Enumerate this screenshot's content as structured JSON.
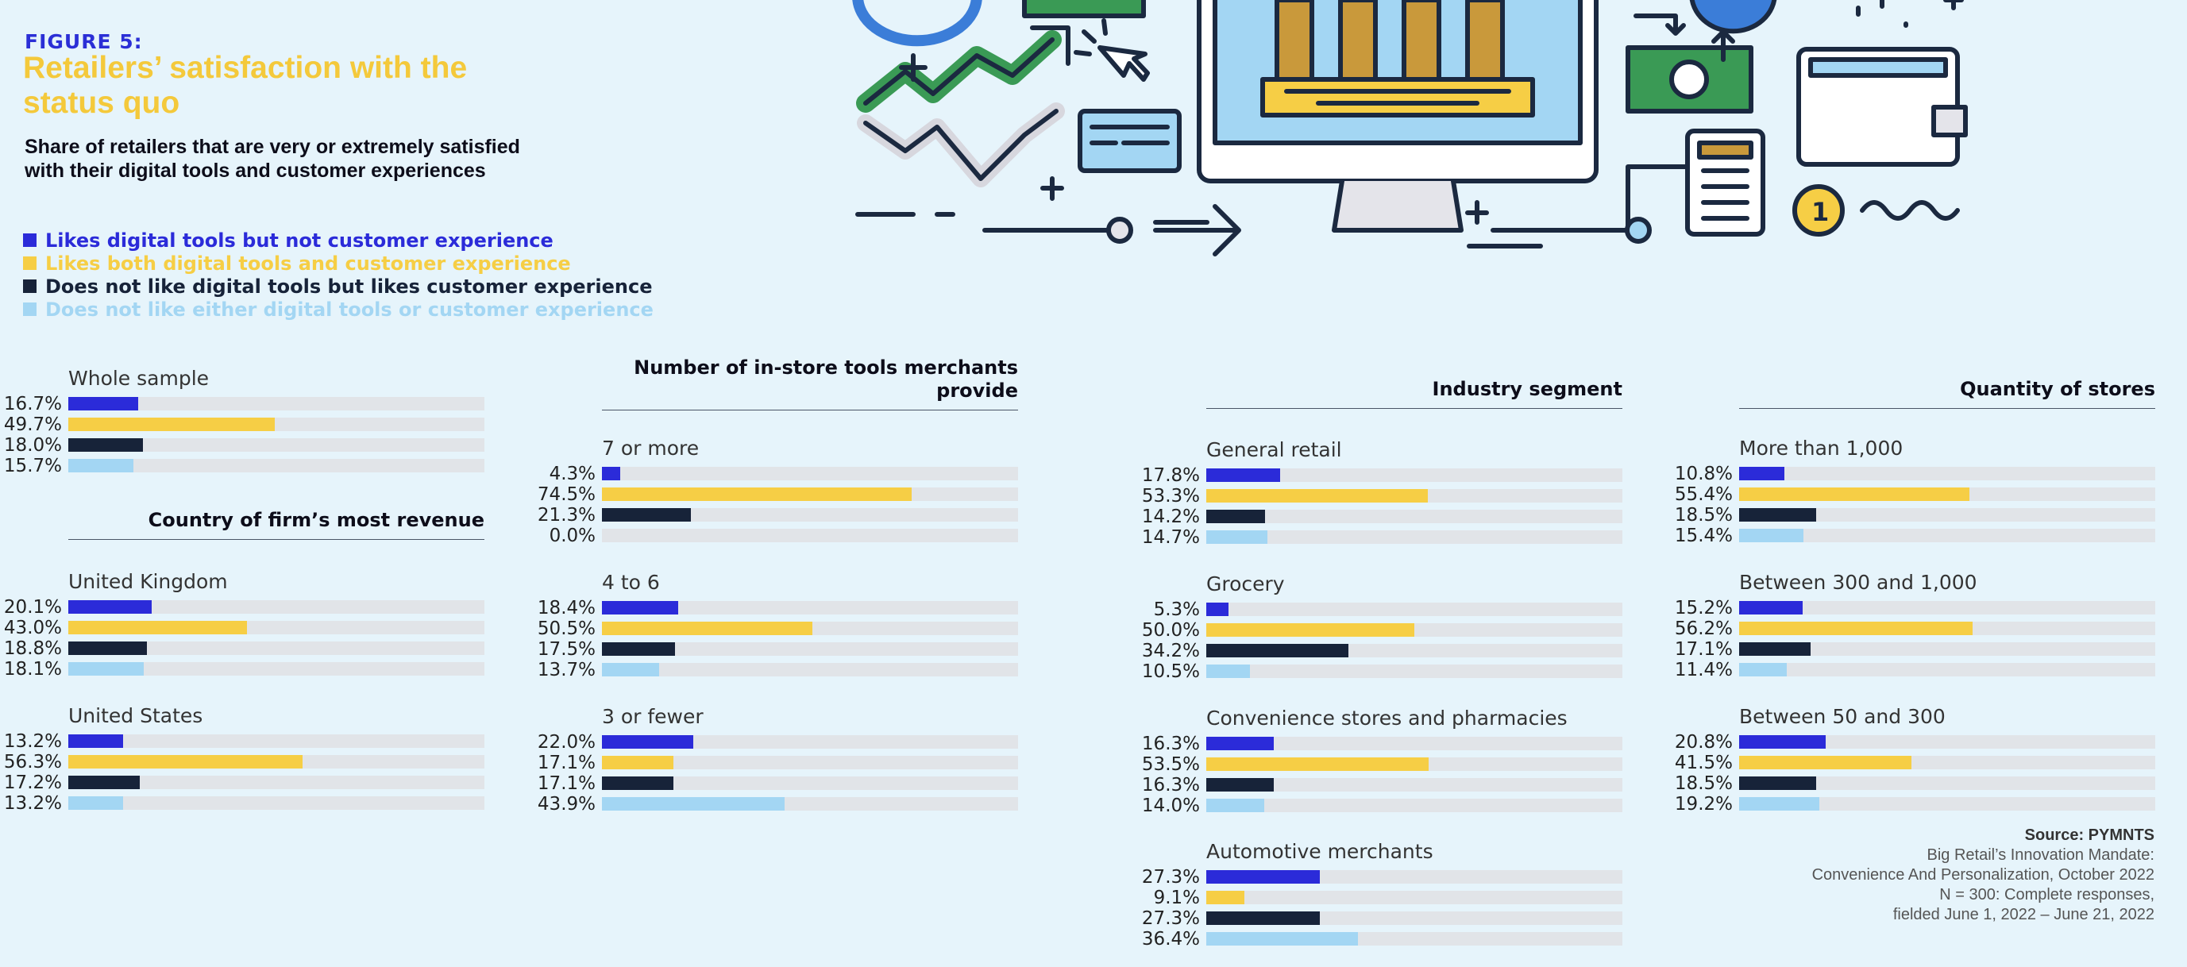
{
  "header": {
    "figure_label": "FIGURE 5:",
    "title": "Retailers’ satisfaction with the status quo",
    "subtitle": "Share of retailers that are very or extremely satisfied with their digital tools and customer experiences"
  },
  "colors": {
    "label": "#2b2fd6",
    "title": "#f4c93b",
    "track": "#e1e4e8",
    "series": [
      "#2b2bd9",
      "#f6ce45",
      "#172339",
      "#a3d6f3"
    ]
  },
  "chart_data": {
    "type": "bar",
    "orientation": "horizontal",
    "unit": "%",
    "xlim": [
      0,
      100
    ],
    "series_names": [
      "Likes digital tools but not customer experience",
      "Likes both digital tools and customer experience",
      "Does not like digital tools but likes customer experience",
      "Does not like either digital tools or customer experience"
    ],
    "sections": [
      {
        "title": "",
        "groups": [
          {
            "label": "Whole sample",
            "values": [
              16.7,
              49.7,
              18.0,
              15.7
            ],
            "display": [
              "16.7%",
              "49.7%",
              "18.0%",
              "15.7%"
            ]
          }
        ]
      },
      {
        "title": "Country of firm’s most revenue",
        "groups": [
          {
            "label": "United Kingdom",
            "values": [
              20.1,
              43.0,
              18.8,
              18.1
            ],
            "display": [
              "20.1%",
              "43.0%",
              "18.8%",
              "18.1%"
            ]
          },
          {
            "label": "United States",
            "values": [
              13.2,
              56.3,
              17.2,
              13.2
            ],
            "display": [
              "13.2%",
              "56.3%",
              "17.2%",
              "13.2%"
            ]
          }
        ]
      },
      {
        "title": "Number of in-store tools merchants provide",
        "groups": [
          {
            "label": "7 or more",
            "values": [
              4.3,
              74.5,
              21.3,
              0.0
            ],
            "display": [
              "4.3%",
              "74.5%",
              "21.3%",
              "0.0%"
            ]
          },
          {
            "label": "4 to 6",
            "values": [
              18.4,
              50.5,
              17.5,
              13.7
            ],
            "display": [
              "18.4%",
              "50.5%",
              "17.5%",
              "13.7%"
            ]
          },
          {
            "label": "3 or fewer",
            "values": [
              22.0,
              17.1,
              17.1,
              43.9
            ],
            "display": [
              "22.0%",
              "17.1%",
              "17.1%",
              "43.9%"
            ]
          }
        ]
      },
      {
        "title": "Industry segment",
        "groups": [
          {
            "label": "General retail",
            "values": [
              17.8,
              53.3,
              14.2,
              14.7
            ],
            "display": [
              "17.8%",
              "53.3%",
              "14.2%",
              "14.7%"
            ]
          },
          {
            "label": "Grocery",
            "values": [
              5.3,
              50.0,
              34.2,
              10.5
            ],
            "display": [
              "5.3%",
              "50.0%",
              "34.2%",
              "10.5%"
            ]
          },
          {
            "label": "Convenience stores and pharmacies",
            "values": [
              16.3,
              53.5,
              16.3,
              14.0
            ],
            "display": [
              "16.3%",
              "53.5%",
              "16.3%",
              "14.0%"
            ]
          },
          {
            "label": "Automotive merchants",
            "values": [
              27.3,
              9.1,
              27.3,
              36.4
            ],
            "display": [
              "27.3%",
              "9.1%",
              "27.3%",
              "36.4%"
            ]
          }
        ]
      },
      {
        "title": "Quantity of stores",
        "groups": [
          {
            "label": "More than 1,000",
            "values": [
              10.8,
              55.4,
              18.5,
              15.4
            ],
            "display": [
              "10.8%",
              "55.4%",
              "18.5%",
              "15.4%"
            ]
          },
          {
            "label": "Between 300 and 1,000",
            "values": [
              15.2,
              56.2,
              17.1,
              11.4
            ],
            "display": [
              "15.2%",
              "56.2%",
              "17.1%",
              "11.4%"
            ]
          },
          {
            "label": "Between 50 and 300",
            "values": [
              20.8,
              41.5,
              18.5,
              19.2
            ],
            "display": [
              "20.8%",
              "41.5%",
              "18.5%",
              "19.2%"
            ]
          }
        ]
      }
    ]
  },
  "source": {
    "head": "Source: PYMNTS",
    "lines": [
      "Big Retail’s Innovation Mandate:",
      "Convenience And Personalization, October 2022",
      "N = 300: Complete responses,",
      "fielded June 1, 2022 – June 21, 2022"
    ]
  }
}
